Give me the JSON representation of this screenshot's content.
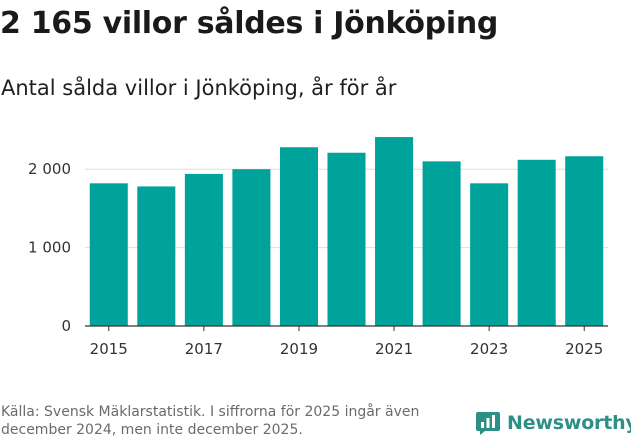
{
  "header": {
    "title": "2 165 villor såldes i Jönköping",
    "subtitle": "Antal sålda villor i Jönköping, år för år"
  },
  "chart_data": {
    "type": "bar",
    "categories": [
      "2015",
      "2016",
      "2017",
      "2018",
      "2019",
      "2020",
      "2021",
      "2022",
      "2023",
      "2024",
      "2025"
    ],
    "values": [
      1820,
      1780,
      1940,
      2000,
      2280,
      2210,
      2410,
      2100,
      1820,
      2120,
      2165
    ],
    "x_tick_labels": [
      "2015",
      "2017",
      "2019",
      "2021",
      "2023",
      "2025"
    ],
    "y_ticks": [
      0,
      1000,
      2000
    ],
    "y_tick_labels": [
      "0",
      "1 000",
      "2 000"
    ],
    "ylim": [
      0,
      2500
    ],
    "grid": true,
    "bar_color": "#00a39a"
  },
  "footer": {
    "source": "Källa: Svensk Mäklarstatistik. I siffrorna för 2025 ingår även december 2024, men inte december 2025.",
    "brand": "Newsworthy",
    "brand_icon": "newsworthy-logo-icon",
    "brand_color": "#2e8f86"
  }
}
